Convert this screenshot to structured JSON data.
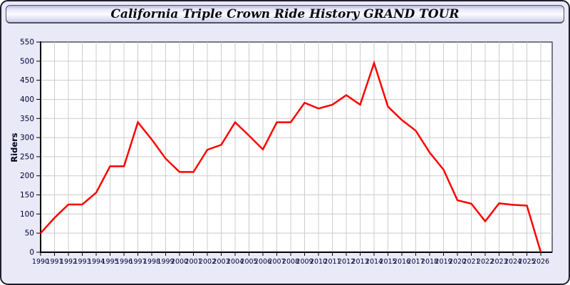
{
  "window": {
    "title": "California Triple Crown Ride History GRAND TOUR"
  },
  "colors": {
    "page_background": "#e9e9f8",
    "plot_background": "#ffffff",
    "gridline": "#cccccc",
    "axis": "#000000",
    "tick_label": "#000033",
    "series_line": "#ff0000"
  },
  "chart_data": {
    "type": "line",
    "title": "California Triple Crown Ride History GRAND TOUR",
    "xlabel": "",
    "ylabel": "Riders",
    "ylim": [
      0,
      550
    ],
    "ytick_step": 50,
    "grid": true,
    "legend": "none",
    "x": [
      1990,
      1991,
      1992,
      1993,
      1994,
      1995,
      1996,
      1997,
      1998,
      1999,
      2000,
      2001,
      2002,
      2003,
      2004,
      2005,
      2006,
      2007,
      2008,
      2009,
      2010,
      2011,
      2012,
      2013,
      2014,
      2015,
      2016,
      2017,
      2018,
      2019,
      2020,
      2021,
      2022,
      2023,
      2024,
      2025,
      2026
    ],
    "series": [
      {
        "name": "Riders",
        "color": "#ff0000",
        "values": [
          50,
          90,
          125,
          125,
          156,
          225,
          225,
          340,
          295,
          245,
          210,
          210,
          268,
          281,
          340,
          305,
          269,
          340,
          340,
          391,
          376,
          386,
          411,
          386,
          495,
          381,
          346,
          318,
          261,
          216,
          136,
          127,
          81,
          128,
          124,
          122,
          0
        ]
      }
    ]
  }
}
